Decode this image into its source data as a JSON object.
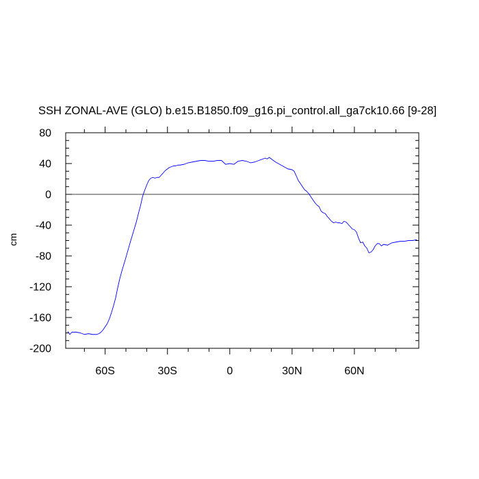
{
  "chart_data": {
    "type": "line",
    "title": "SSH ZONAL-AVE (GLO) b.e15.B1850.f09_g16.pi_control.all_ga7ck10.66 [9-28]",
    "xlabel": "",
    "ylabel": "cm",
    "xlim": [
      -79,
      91
    ],
    "ylim": [
      -200,
      80
    ],
    "x_ticks": [
      {
        "value": -60,
        "label": "60S"
      },
      {
        "value": -30,
        "label": "30S"
      },
      {
        "value": 0,
        "label": "0"
      },
      {
        "value": 30,
        "label": "30N"
      },
      {
        "value": 60,
        "label": "60N"
      }
    ],
    "y_ticks": [
      {
        "value": 80,
        "label": "80"
      },
      {
        "value": 40,
        "label": "40"
      },
      {
        "value": 0,
        "label": "0"
      },
      {
        "value": -40,
        "label": "-40"
      },
      {
        "value": -80,
        "label": "-80"
      },
      {
        "value": -120,
        "label": "-120"
      },
      {
        "value": -160,
        "label": "-160"
      },
      {
        "value": -200,
        "label": "-200"
      }
    ],
    "reference_line_y": 0,
    "grid": false,
    "series": [
      {
        "color": "#0000ff",
        "x": [
          -78,
          -77,
          -76,
          -74,
          -72,
          -70,
          -68,
          -66,
          -64,
          -63,
          -62,
          -61,
          -60,
          -59,
          -58,
          -57,
          -56,
          -55,
          -54,
          -53,
          -52,
          -50,
          -48,
          -46,
          -45,
          -44,
          -43,
          -42,
          -41,
          -40,
          -39,
          -38,
          -37,
          -36,
          -35,
          -34,
          -33,
          -32,
          -31,
          -30,
          -29,
          -28,
          -27,
          -26,
          -25,
          -24,
          -22,
          -20,
          -18,
          -16,
          -14,
          -12,
          -10,
          -8,
          -6,
          -4,
          -2,
          0,
          2,
          4,
          6,
          8,
          10,
          12,
          14,
          16,
          17,
          18,
          19,
          20,
          22,
          24,
          26,
          28,
          30,
          31,
          32,
          33,
          34,
          35,
          36,
          37,
          38,
          39,
          40,
          41,
          42,
          43,
          44,
          45,
          46,
          47,
          48,
          49,
          50,
          51,
          52,
          53,
          54,
          55,
          56,
          57,
          58,
          59,
          60,
          61,
          62,
          63,
          64,
          65,
          66,
          67,
          68,
          69,
          70,
          71,
          72,
          73,
          74,
          76,
          78,
          80,
          82,
          84,
          86,
          88,
          90
        ],
        "y": [
          -178,
          -182,
          -179,
          -179,
          -180,
          -182,
          -181,
          -182,
          -182,
          -181,
          -179,
          -176,
          -172,
          -168,
          -162,
          -154,
          -145,
          -135,
          -122,
          -110,
          -100,
          -82,
          -63,
          -45,
          -36,
          -25,
          -15,
          -3,
          5,
          12,
          18,
          21,
          22,
          21,
          22,
          22,
          25,
          28,
          31,
          33,
          35,
          36,
          37,
          37,
          38,
          38,
          39,
          41,
          42,
          43,
          44,
          44,
          43,
          43,
          44,
          44,
          39,
          40,
          39,
          43,
          44,
          43,
          41,
          42,
          44,
          46,
          47,
          46,
          48,
          46,
          42,
          39,
          36,
          33,
          32,
          30,
          24,
          18,
          14,
          10,
          6,
          4,
          1,
          -3,
          -7,
          -11,
          -14,
          -16,
          -22,
          -24,
          -25,
          -29,
          -32,
          -35,
          -37,
          -36,
          -37,
          -37,
          -38,
          -35,
          -36,
          -39,
          -42,
          -45,
          -46,
          -49,
          -57,
          -63,
          -62,
          -67,
          -70,
          -76,
          -75,
          -72,
          -67,
          -64,
          -64,
          -67,
          -65,
          -66,
          -63,
          -62,
          -61,
          -61,
          -60,
          -60,
          -59
        ]
      }
    ]
  }
}
